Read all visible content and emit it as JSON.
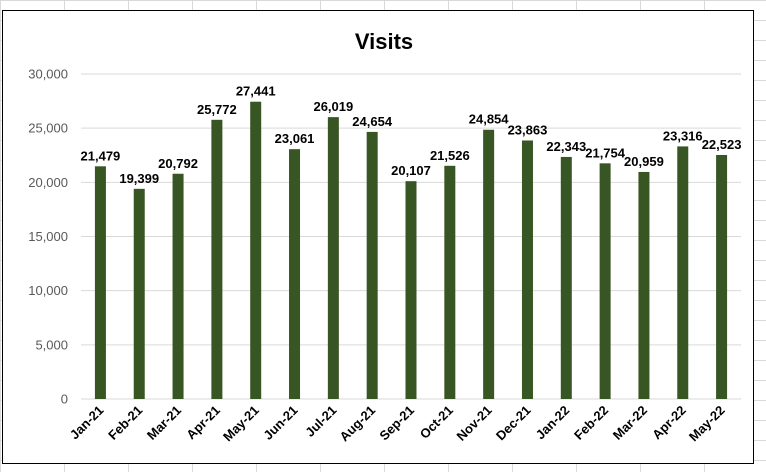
{
  "chart_data": {
    "type": "bar",
    "title": "Visits",
    "xlabel": "",
    "ylabel": "",
    "categories": [
      "Jan-21",
      "Feb-21",
      "Mar-21",
      "Apr-21",
      "May-21",
      "Jun-21",
      "Jul-21",
      "Aug-21",
      "Sep-21",
      "Oct-21",
      "Nov-21",
      "Dec-21",
      "Jan-22",
      "Feb-22",
      "Mar-22",
      "Apr-22",
      "May-22"
    ],
    "values": [
      21479,
      19399,
      20792,
      25772,
      27441,
      23061,
      26019,
      24654,
      20107,
      21526,
      24854,
      23863,
      22343,
      21754,
      20959,
      23316,
      22523
    ],
    "value_labels": [
      "21,479",
      "19,399",
      "20,792",
      "25,772",
      "27,441",
      "23,061",
      "26,019",
      "24,654",
      "20,107",
      "21,526",
      "24,854",
      "23,863",
      "22,343",
      "21,754",
      "20,959",
      "23,316",
      "22,523"
    ],
    "y_ticks": [
      0,
      5000,
      10000,
      15000,
      20000,
      25000,
      30000
    ],
    "y_tick_labels": [
      "0",
      "5,000",
      "10,000",
      "15,000",
      "20,000",
      "25,000",
      "30,000"
    ],
    "ylim": [
      0,
      30000
    ],
    "grid": true,
    "legend": "none",
    "bar_color": "#375623",
    "gridline_color": "#d9d9d9"
  }
}
